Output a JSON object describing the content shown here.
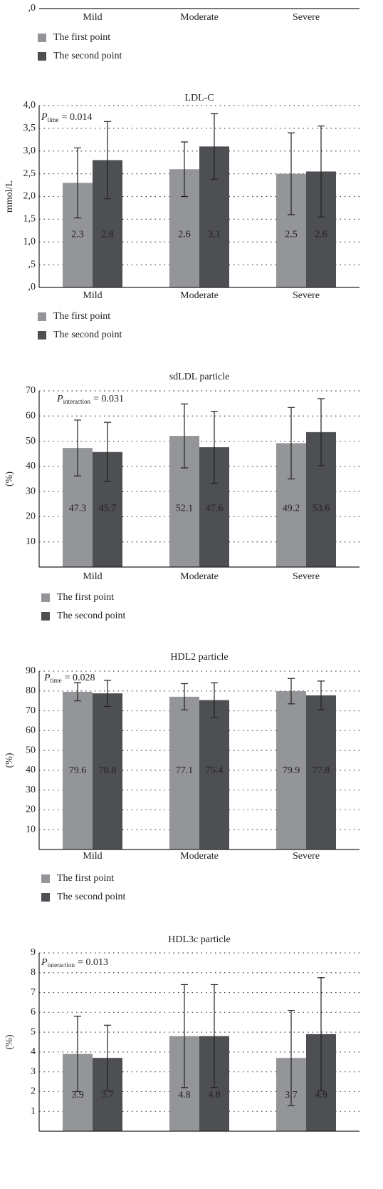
{
  "chart_data": [
    {
      "type": "bar",
      "categories": [
        "Mild",
        "Moderate",
        "Severe"
      ],
      "series": [
        {
          "name": "The first point",
          "color": "#939598"
        },
        {
          "name": "The second point",
          "color": "#4d4f52"
        }
      ],
      "yticks": [
        {
          "value": 0,
          "label": ",0"
        }
      ],
      "grid": true,
      "legend": "bottom-left"
    },
    {
      "type": "bar",
      "title": "LDL-C",
      "ylabel": "mmol/L",
      "annotation": {
        "main": "P",
        "sub": "time",
        "text": "= 0.014"
      },
      "categories": [
        "Mild",
        "Moderate",
        "Severe"
      ],
      "series": [
        {
          "name": "The first point",
          "color": "#939598",
          "values": [
            2.3,
            2.6,
            2.5
          ],
          "errors": [
            0.77,
            0.6,
            0.9
          ]
        },
        {
          "name": "The second point",
          "color": "#4d4f52",
          "values": [
            2.8,
            3.1,
            2.55
          ],
          "value_labels": [
            "2.8",
            "3.1",
            "2.6"
          ],
          "errors": [
            0.85,
            0.72,
            1.0
          ]
        }
      ],
      "ylim": [
        0,
        4
      ],
      "yticks": [
        {
          "value": 0,
          "label": ",0"
        },
        {
          "value": 0.5,
          "label": ",5"
        },
        {
          "value": 1,
          "label": "1,0"
        },
        {
          "value": 1.5,
          "label": "1,5"
        },
        {
          "value": 2,
          "label": "2,0"
        },
        {
          "value": 2.5,
          "label": "2,5"
        },
        {
          "value": 3,
          "label": "3,0"
        },
        {
          "value": 3.5,
          "label": "3,5"
        },
        {
          "value": 4,
          "label": "4,0"
        }
      ],
      "grid": true,
      "legend": "bottom-left"
    },
    {
      "type": "bar",
      "title": "sdLDL particle",
      "ylabel": "(%)",
      "annotation": {
        "main": "P",
        "sub": "interaction",
        "text": "= 0.031"
      },
      "categories": [
        "Mild",
        "Moderate",
        "Severe"
      ],
      "series": [
        {
          "name": "The first point",
          "color": "#939598",
          "values": [
            47.3,
            52.1,
            49.2
          ],
          "errors": [
            11.1,
            12.7,
            14.2
          ]
        },
        {
          "name": "The second point",
          "color": "#4d4f52",
          "values": [
            45.7,
            47.6,
            53.6
          ],
          "errors": [
            11.8,
            14.3,
            13.3
          ]
        }
      ],
      "ylim": [
        0,
        70
      ],
      "yticks": [
        10,
        20,
        30,
        40,
        50,
        60,
        70
      ],
      "grid": true,
      "legend": "bottom-left"
    },
    {
      "type": "bar",
      "title": "HDL2 particle",
      "ylabel": "(%)",
      "annotation": {
        "main": "P",
        "sub": "time",
        "text": "= 0.028"
      },
      "categories": [
        "Mild",
        "Moderate",
        "Severe"
      ],
      "series": [
        {
          "name": "The first point",
          "color": "#939598",
          "values": [
            79.6,
            77.1,
            79.9
          ],
          "errors": [
            4.6,
            6.6,
            6.4
          ]
        },
        {
          "name": "The second point",
          "color": "#4d4f52",
          "values": [
            78.8,
            75.4,
            77.8
          ],
          "errors": [
            6.6,
            8.7,
            7.2
          ]
        }
      ],
      "ylim": [
        0,
        90
      ],
      "yticks": [
        10,
        20,
        30,
        40,
        50,
        60,
        70,
        80,
        90
      ],
      "grid": true,
      "legend": "bottom-left"
    },
    {
      "type": "bar",
      "title": "HDL3c particle",
      "ylabel": "(%)",
      "annotation": {
        "main": "P",
        "sub": "interaction",
        "text": "= 0.013"
      },
      "categories": [
        null,
        null,
        null
      ],
      "series": [
        {
          "color": "#939598",
          "values": [
            3.9,
            4.8,
            3.7
          ],
          "errors": [
            1.9,
            2.6,
            2.4
          ]
        },
        {
          "color": "#4d4f52",
          "values": [
            3.7,
            4.8,
            4.9
          ],
          "errors": [
            1.65,
            2.6,
            2.85
          ]
        }
      ],
      "ylim": [
        0,
        9
      ],
      "yticks": [
        1,
        2,
        3,
        4,
        5,
        6,
        7,
        8,
        9
      ],
      "grid": true
    }
  ]
}
